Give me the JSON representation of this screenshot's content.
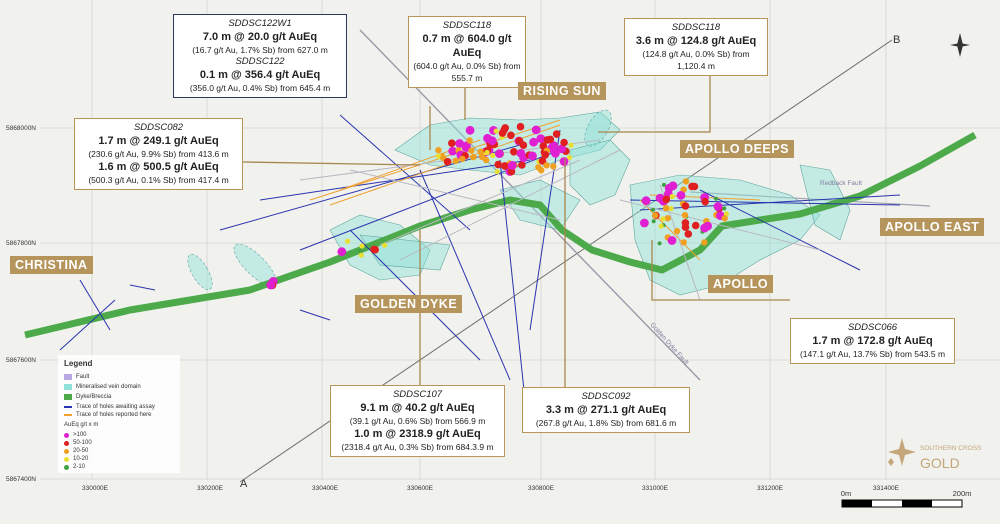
{
  "callouts": [
    {
      "intercepts": [
        {
          "hole": "SDDSC122W1",
          "result": "7.0 m @ 20.0 g/t AuEq",
          "detail": "(16.7 g/t Au, 1.7% Sb) from 627.0 m"
        },
        {
          "hole": "SDDSC122",
          "result": "0.1 m @ 356.4 g/t AuEq",
          "detail": "(356.0 g/t Au, 0.4% Sb) from 645.4 m"
        }
      ]
    },
    {
      "intercepts": [
        {
          "hole": "SDDSC118",
          "result": "0.7 m @ 604.0 g/t AuEq",
          "detail": "(604.0 g/t Au, 0.0% Sb) from 555.7 m"
        }
      ]
    },
    {
      "intercepts": [
        {
          "hole": "SDDSC118",
          "result": "3.6 m @ 124.8 g/t AuEq",
          "detail": "(124.8 g/t Au, 0.0% Sb) from 1,120.4 m"
        }
      ]
    },
    {
      "intercepts": [
        {
          "hole": "SDDSC082",
          "result": "1.7 m @ 249.1 g/t AuEq",
          "detail": "(230.6 g/t Au, 9.9% Sb) from 413.6 m"
        },
        {
          "result": "1.6 m @ 500.5 g/t AuEq",
          "detail": "(500.3 g/t Au, 0.1% Sb) from 417.4 m"
        }
      ]
    },
    {
      "intercepts": [
        {
          "hole": "SDDSC066",
          "result": "1.7 m @ 172.8 g/t AuEq",
          "detail": "(147.1 g/t Au, 13.7% Sb) from 543.5 m"
        }
      ]
    },
    {
      "intercepts": [
        {
          "hole": "SDDSC107",
          "result": "9.1 m @ 40.2 g/t AuEq",
          "detail": "(39.1 g/t Au, 0.6% Sb) from 566.9 m"
        },
        {
          "result": "1.0 m @ 2318.9 g/t AuEq",
          "detail": "(2318.4 g/t Au, 0.3% Sb) from 684.3.9 m"
        }
      ]
    },
    {
      "intercepts": [
        {
          "hole": "SDDSC092",
          "result": "3.3 m @ 271.1 g/t AuEq",
          "detail": "(267.8 g/t Au, 1.8% Sb) from 681.6 m"
        }
      ]
    }
  ],
  "zones": [
    "RISING SUN",
    "APOLLO DEEPS",
    "CHRISTINA",
    "GOLDEN DYKE",
    "APOLLO",
    "APOLLO EAST"
  ],
  "northings": [
    "5868000N",
    "5867800N",
    "5867600N",
    "5867400N"
  ],
  "eastings": [
    "330000E",
    "330200E",
    "330400E",
    "330600E",
    "330800E",
    "331000E",
    "331200E",
    "331400E"
  ],
  "section_ends": [
    "A",
    "B"
  ],
  "faults": [
    "Redback Fault",
    "Golden Dyke Fault"
  ],
  "legend": {
    "title": "Legend",
    "items": [
      "Fault",
      "Mineralised vein domain",
      "Dyke/Breccia",
      "Trace of holes awaiting assay",
      "Trace of holes reported here"
    ],
    "dots_title": "AuEq g/t x m",
    "dots": [
      ">100",
      "50-100",
      "20-50",
      "10-20",
      "2-10"
    ]
  },
  "scale": [
    "0m",
    "200m"
  ],
  "logo": {
    "line1": "SOUTHERN CROSS",
    "line2": "GOLD"
  }
}
